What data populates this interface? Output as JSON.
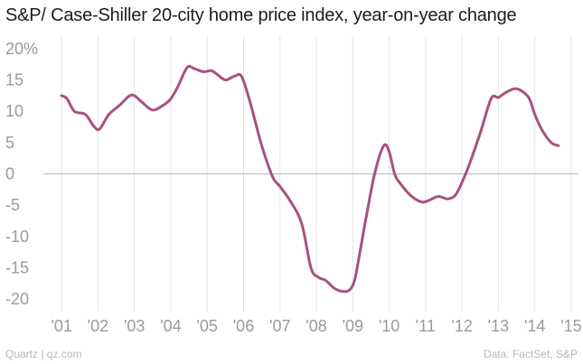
{
  "title": "S&P/ Case-Shiller 20-city home price index, year-on-year change",
  "footer": {
    "left": "Quartz | qz.com",
    "right": "Data: FactSet, S&P"
  },
  "colors": {
    "line": "#a8517f",
    "grid": "#e3e3e3",
    "zero": "#b8b8b8",
    "tick": "#9a9a9a"
  },
  "chart_data": {
    "type": "line",
    "title": "S&P/ Case-Shiller 20-city home price index, year-on-year change",
    "xlabel": "",
    "ylabel": "",
    "xlim": [
      2000.5,
      2015.2
    ],
    "ylim": [
      -22,
      22
    ],
    "y_ticks": [
      20,
      15,
      10,
      5,
      0,
      -5,
      -10,
      -15,
      -20
    ],
    "y_tick_labels": [
      "20%",
      "15",
      "10",
      "5",
      "0",
      "-5",
      "-10",
      "-15",
      "-20"
    ],
    "x_ticks": [
      2001,
      2002,
      2003,
      2004,
      2005,
      2006,
      2007,
      2008,
      2009,
      2010,
      2011,
      2012,
      2013,
      2014,
      2015
    ],
    "x_tick_labels": [
      "'01",
      "'02",
      "'03",
      "'04",
      "'05",
      "'06",
      "'07",
      "'08",
      "'09",
      "'10",
      "'11",
      "'12",
      "'13",
      "'14",
      "'15"
    ],
    "grid": "vertical",
    "series": [
      {
        "x": [
          2001.0,
          2001.15,
          2001.35,
          2001.65,
          2001.9,
          2002.05,
          2002.3,
          2002.6,
          2002.85,
          2003.0,
          2003.2,
          2003.5,
          2003.8,
          2004.0,
          2004.2,
          2004.45,
          2004.65,
          2004.9,
          2005.1,
          2005.25,
          2005.5,
          2005.75,
          2005.95,
          2006.2,
          2006.5,
          2006.8,
          2007.0,
          2007.3,
          2007.6,
          2007.85,
          2008.05,
          2008.25,
          2008.5,
          2008.75,
          2008.92,
          2009.05,
          2009.15,
          2009.35,
          2009.6,
          2009.85,
          2010.0,
          2010.15,
          2010.3,
          2010.6,
          2010.9,
          2011.1,
          2011.35,
          2011.6,
          2011.8,
          2011.95,
          2012.2,
          2012.5,
          2012.8,
          2013.0,
          2013.2,
          2013.45,
          2013.65,
          2013.85,
          2014.0,
          2014.2,
          2014.45,
          2014.65
        ],
        "values": [
          12.5,
          12.0,
          10.0,
          9.5,
          7.5,
          7.2,
          9.5,
          11.0,
          12.4,
          12.5,
          11.5,
          10.2,
          11.0,
          12.0,
          14.0,
          17.0,
          16.8,
          16.3,
          16.5,
          16.0,
          15.0,
          15.6,
          15.5,
          11.0,
          4.5,
          -0.5,
          -2.0,
          -4.5,
          -8.0,
          -15.0,
          -16.5,
          -17.0,
          -18.3,
          -18.8,
          -18.5,
          -17.0,
          -14.0,
          -7.5,
          0.0,
          4.5,
          3.5,
          0.0,
          -1.5,
          -3.5,
          -4.5,
          -4.2,
          -3.6,
          -4.0,
          -3.5,
          -2.0,
          1.5,
          6.5,
          12.0,
          12.2,
          13.0,
          13.6,
          13.2,
          12.0,
          9.5,
          7.0,
          5.0,
          4.5
        ]
      }
    ]
  }
}
